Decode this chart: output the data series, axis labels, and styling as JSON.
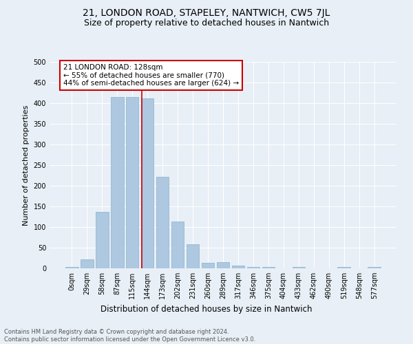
{
  "title": "21, LONDON ROAD, STAPELEY, NANTWICH, CW5 7JL",
  "subtitle": "Size of property relative to detached houses in Nantwich",
  "xlabel": "Distribution of detached houses by size in Nantwich",
  "ylabel": "Number of detached properties",
  "bar_labels": [
    "0sqm",
    "29sqm",
    "58sqm",
    "87sqm",
    "115sqm",
    "144sqm",
    "173sqm",
    "202sqm",
    "231sqm",
    "260sqm",
    "289sqm",
    "317sqm",
    "346sqm",
    "375sqm",
    "404sqm",
    "433sqm",
    "462sqm",
    "490sqm",
    "519sqm",
    "548sqm",
    "577sqm"
  ],
  "bar_values": [
    3,
    22,
    137,
    415,
    415,
    412,
    222,
    113,
    58,
    14,
    15,
    7,
    3,
    4,
    0,
    4,
    0,
    0,
    3,
    0,
    3
  ],
  "bar_color": "#adc8e0",
  "bar_edge_color": "#8ab0cc",
  "background_color": "#e8eff6",
  "grid_color": "#ffffff",
  "ylim": [
    0,
    500
  ],
  "yticks": [
    0,
    50,
    100,
    150,
    200,
    250,
    300,
    350,
    400,
    450,
    500
  ],
  "redline_x": 4.65,
  "annotation_text": "21 LONDON ROAD: 128sqm\n← 55% of detached houses are smaller (770)\n44% of semi-detached houses are larger (624) →",
  "annotation_box_color": "#ffffff",
  "annotation_box_edge": "#cc0000",
  "footer_line1": "Contains HM Land Registry data © Crown copyright and database right 2024.",
  "footer_line2": "Contains public sector information licensed under the Open Government Licence v3.0.",
  "title_fontsize": 10,
  "subtitle_fontsize": 9,
  "tick_label_fontsize": 7,
  "ylabel_fontsize": 8,
  "xlabel_fontsize": 8.5,
  "annotation_fontsize": 7.5,
  "footer_fontsize": 6
}
